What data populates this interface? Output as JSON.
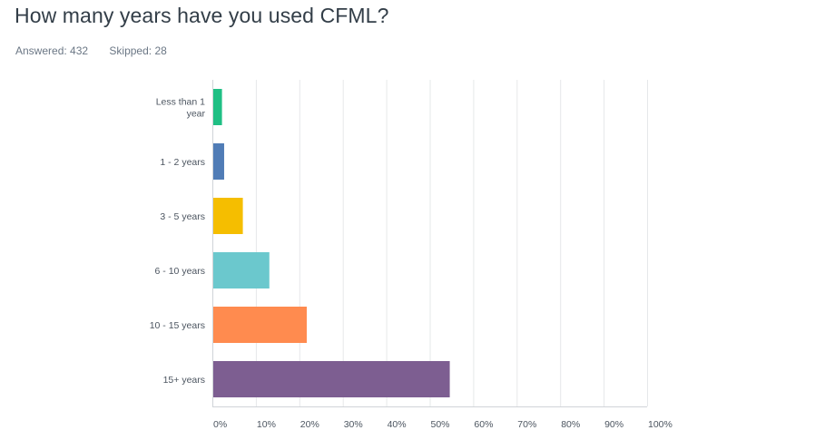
{
  "header": {
    "title": "How many years have you used CFML?",
    "answered": "Answered: 432",
    "skipped": "Skipped: 28"
  },
  "chart_data": {
    "type": "bar",
    "orientation": "horizontal",
    "categories": [
      [
        "Less than 1",
        "year"
      ],
      [
        "1 - 2 years"
      ],
      [
        "3 - 5 years"
      ],
      [
        "6 - 10 years"
      ],
      [
        "10 - 15 years"
      ],
      [
        "15+ years"
      ]
    ],
    "values": [
      2.0,
      2.5,
      6.8,
      12.9,
      21.5,
      54.4
    ],
    "colors": [
      "#1fbf84",
      "#507cb6",
      "#f5be00",
      "#6bc8cd",
      "#ff8b4f",
      "#7d5e91"
    ],
    "xticks": [
      "0%",
      "10%",
      "20%",
      "30%",
      "40%",
      "50%",
      "60%",
      "70%",
      "80%",
      "90%",
      "100%"
    ],
    "xlim": [
      0,
      100
    ],
    "grid": true,
    "legend": "none"
  }
}
